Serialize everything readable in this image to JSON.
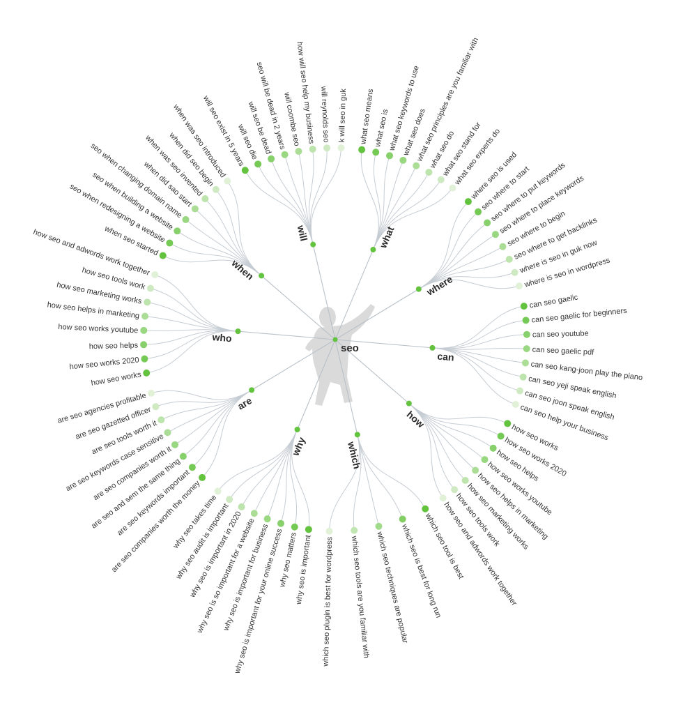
{
  "root": {
    "label": "seo"
  },
  "colors": {
    "strong": "#63c33f",
    "light": "#e1f1d8",
    "link": "#c5ccd3"
  },
  "mascot": "person-silhouette",
  "branches": [
    {
      "label": "will",
      "items": [
        "will seo exist in 5 years",
        "will seo die",
        "will seo be dead",
        "seo will be dead in 2 years",
        "will coombe seo",
        "how will seo help my business",
        "will reynolds seo",
        "k will seo in guk"
      ]
    },
    {
      "label": "what",
      "items": [
        "what seo means",
        "what seo is",
        "what seo keywords to use",
        "what seo does",
        "what seo principles are you familiar with",
        "what seo do",
        "what seo stand for",
        "what seo experts do"
      ]
    },
    {
      "label": "where",
      "items": [
        "where seo is used",
        "seo where to start",
        "seo where to put keywords",
        "seo where to place keywords",
        "seo where to begin",
        "seo where to get backlinks",
        "where is seo in guk now",
        "where is seo in wordpress"
      ]
    },
    {
      "label": "can",
      "items": [
        "can seo gaelic",
        "can seo gaelic for beginners",
        "can seo youtube",
        "can seo gaelic pdf",
        "can seo kang-joon play the piano",
        "can seo yeji speak english",
        "can seo joon speak english",
        "can seo help your business"
      ]
    },
    {
      "label": "how",
      "items": [
        "how seo works",
        "how seo works 2020",
        "how seo helps",
        "how seo works youtube",
        "how seo helps in marketing",
        "how seo marketing works",
        "how seo tools work",
        "how seo and adwords work together"
      ]
    },
    {
      "label": "which",
      "items": [
        "which seo tool is best",
        "which seo is best for long run",
        "which seo techniques are popular",
        "which seo tools are you familiar with",
        "which seo plugin is best for wordpress"
      ]
    },
    {
      "label": "why",
      "items": [
        "why seo is important",
        "why seo matters",
        "why seo is important for your online success",
        "why seo is important for business",
        "why seo is so important for a website",
        "why seo is important in 2020",
        "why seo audit is important",
        "why seo takes time"
      ]
    },
    {
      "label": "are",
      "items": [
        "are seo companies worth the money",
        "are seo keywords important",
        "are seo and sem the same thing",
        "are seo companies worth it",
        "are seo keywords case sensitive",
        "are seo tools worth it",
        "are seo gazetted officer",
        "are seo agencies profitable"
      ]
    },
    {
      "label": "who",
      "items": [
        "how seo works",
        "how seo works 2020",
        "how seo helps",
        "how seo works youtube",
        "how seo helps in marketing",
        "how seo marketing works",
        "how seo tools work",
        "how seo and adwords work together"
      ]
    },
    {
      "label": "when",
      "items": [
        "when seo started",
        "seo when redesigning a website",
        "seo when building a website",
        "seo when changing domain name",
        "when did sao start",
        "when was seo invented",
        "when did seo begin",
        "when was seo introduced"
      ]
    }
  ]
}
